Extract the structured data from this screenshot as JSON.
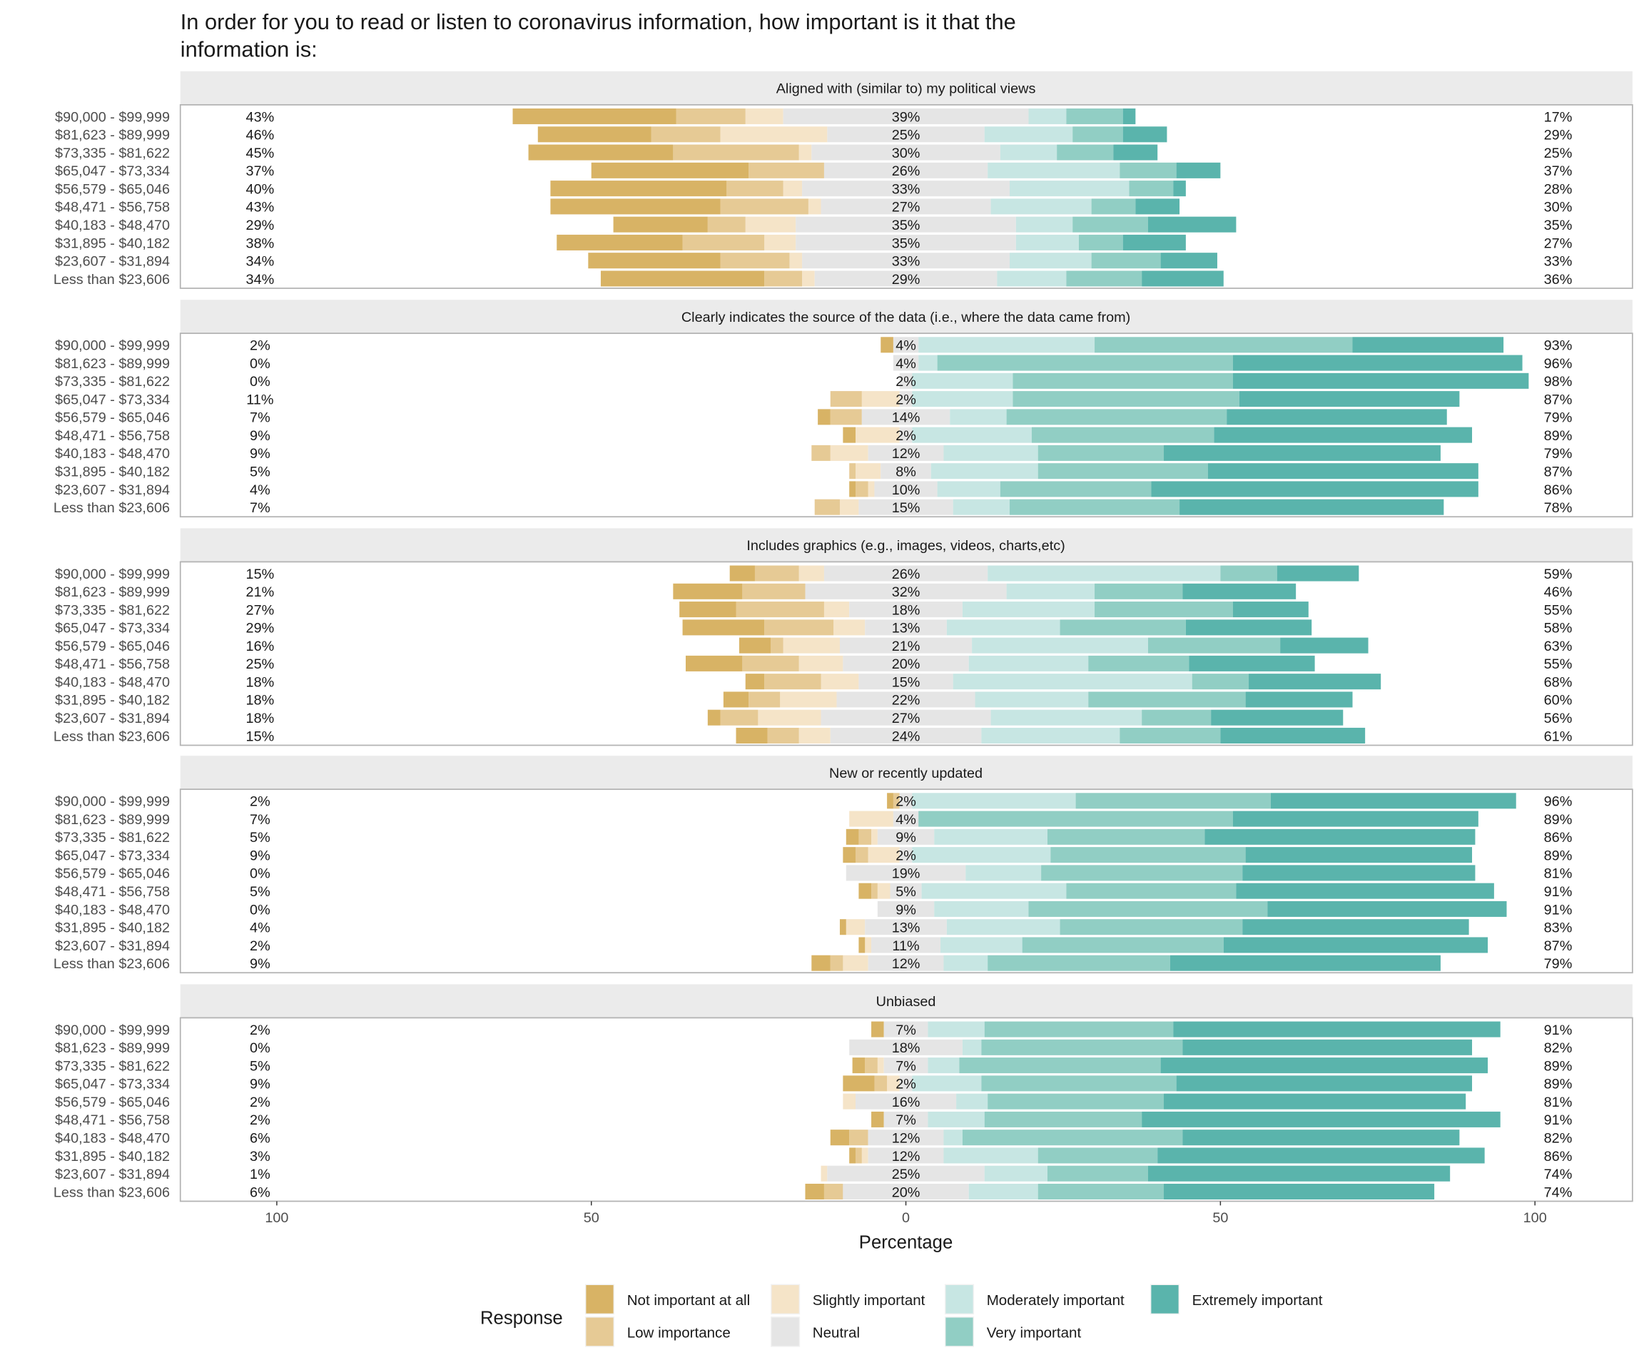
{
  "chart_data": {
    "type": "bar",
    "subtype": "diverging-stacked-likert",
    "title": "In order for you to read or listen to coronavirus information, how important is it that the information is:",
    "title_lines": [
      "In order for you to read or listen to coronavirus information, how important is it that the",
      "information is:"
    ],
    "xlabel": "Percentage",
    "xlim": [
      -115,
      115
    ],
    "xticks": [
      -100,
      -50,
      0,
      50,
      100
    ],
    "xtick_labels": [
      "100",
      "50",
      "0",
      "50",
      "100"
    ],
    "legend": {
      "title": "Response",
      "placement": "bottom",
      "entries": [
        "Not important at all",
        "Low importance",
        "Slightly important",
        "Neutral",
        "Moderately important",
        "Very important",
        "Extremely important"
      ]
    },
    "colors": [
      "#D8B365",
      "#E6CA95",
      "#F5E4C8",
      "#E5E5E5",
      "#C7E6E3",
      "#91CEC4",
      "#5AB4AC"
    ],
    "categories": [
      "$90,000 - $99,999",
      "$81,623 - $89,999",
      "$73,335 - $81,622",
      "$65,047 - $73,334",
      "$56,579 - $65,046",
      "$48,471 - $56,758",
      "$40,183 - $48,470",
      "$31,895 - $40,182",
      "$23,607 - $31,894",
      "Less than $23,606"
    ],
    "panels": [
      {
        "title": "Aligned with (similar to) my political views",
        "values": [
          [
            26,
            11,
            6,
            39,
            6,
            9,
            2
          ],
          [
            18,
            11,
            17,
            25,
            14,
            8,
            7
          ],
          [
            23,
            20,
            2,
            30,
            9,
            9,
            7
          ],
          [
            25,
            12,
            0,
            26,
            21,
            9,
            7
          ],
          [
            28,
            9,
            3,
            33,
            19,
            7,
            2
          ],
          [
            27,
            14,
            2,
            27,
            16,
            7,
            7
          ],
          [
            15,
            6,
            8,
            35,
            9,
            12,
            14
          ],
          [
            20,
            13,
            5,
            35,
            10,
            7,
            10
          ],
          [
            21,
            11,
            2,
            33,
            13,
            11,
            9
          ],
          [
            26,
            6,
            2,
            29,
            11,
            12,
            13
          ]
        ],
        "left_labels": [
          "43%",
          "46%",
          "45%",
          "37%",
          "40%",
          "43%",
          "29%",
          "38%",
          "34%",
          "34%"
        ],
        "center_labels": [
          "39%",
          "25%",
          "30%",
          "26%",
          "33%",
          "27%",
          "35%",
          "35%",
          "33%",
          "29%"
        ],
        "right_labels": [
          "17%",
          "29%",
          "25%",
          "37%",
          "28%",
          "30%",
          "35%",
          "27%",
          "33%",
          "36%"
        ]
      },
      {
        "title": "Clearly indicates the source of the data (i.e., where the data came from)",
        "values": [
          [
            2,
            0,
            0,
            4,
            28,
            41,
            24
          ],
          [
            0,
            0,
            0,
            4,
            3,
            47,
            46
          ],
          [
            0,
            0,
            0,
            2,
            16,
            35,
            47
          ],
          [
            0,
            5,
            6,
            2,
            16,
            36,
            35
          ],
          [
            2,
            5,
            0,
            14,
            9,
            35,
            35
          ],
          [
            2,
            0,
            7,
            2,
            19,
            29,
            41
          ],
          [
            0,
            3,
            6,
            12,
            15,
            20,
            44
          ],
          [
            0,
            1,
            4,
            8,
            17,
            27,
            43
          ],
          [
            1,
            2,
            1,
            10,
            10,
            24,
            52
          ],
          [
            0,
            4,
            3,
            15,
            9,
            27,
            42
          ]
        ],
        "left_labels": [
          "2%",
          "0%",
          "0%",
          "11%",
          "7%",
          "9%",
          "9%",
          "5%",
          "4%",
          "7%"
        ],
        "center_labels": [
          "4%",
          "4%",
          "2%",
          "2%",
          "14%",
          "2%",
          "12%",
          "8%",
          "10%",
          "15%"
        ],
        "right_labels": [
          "93%",
          "96%",
          "98%",
          "87%",
          "79%",
          "89%",
          "79%",
          "87%",
          "86%",
          "78%"
        ]
      },
      {
        "title": "Includes graphics (e.g., images, videos, charts,etc)",
        "values": [
          [
            4,
            7,
            4,
            26,
            37,
            9,
            13
          ],
          [
            11,
            10,
            0,
            32,
            14,
            14,
            18
          ],
          [
            9,
            14,
            4,
            18,
            21,
            22,
            12
          ],
          [
            13,
            11,
            5,
            13,
            18,
            20,
            20
          ],
          [
            5,
            2,
            9,
            21,
            28,
            21,
            14
          ],
          [
            9,
            9,
            7,
            20,
            19,
            16,
            20
          ],
          [
            3,
            9,
            6,
            15,
            38,
            9,
            21
          ],
          [
            4,
            5,
            9,
            22,
            18,
            25,
            17
          ],
          [
            2,
            6,
            10,
            27,
            24,
            11,
            21
          ],
          [
            5,
            5,
            5,
            24,
            22,
            16,
            23
          ]
        ],
        "left_labels": [
          "15%",
          "21%",
          "27%",
          "29%",
          "16%",
          "25%",
          "18%",
          "18%",
          "18%",
          "15%"
        ],
        "center_labels": [
          "26%",
          "32%",
          "18%",
          "13%",
          "21%",
          "20%",
          "15%",
          "22%",
          "27%",
          "24%"
        ],
        "right_labels": [
          "59%",
          "46%",
          "55%",
          "58%",
          "63%",
          "55%",
          "68%",
          "60%",
          "56%",
          "61%"
        ]
      },
      {
        "title": "New or recently updated",
        "values": [
          [
            1,
            1,
            0,
            2,
            26,
            31,
            39
          ],
          [
            0,
            0,
            7,
            4,
            0,
            50,
            39
          ],
          [
            2,
            2,
            1,
            9,
            18,
            25,
            43
          ],
          [
            2,
            2,
            5,
            2,
            22,
            31,
            36
          ],
          [
            0,
            0,
            0,
            19,
            12,
            32,
            37
          ],
          [
            2,
            1,
            2,
            5,
            23,
            27,
            41
          ],
          [
            0,
            0,
            0,
            9,
            15,
            38,
            38
          ],
          [
            1,
            0,
            3,
            13,
            18,
            29,
            36
          ],
          [
            1,
            0,
            1,
            11,
            13,
            32,
            42
          ],
          [
            3,
            2,
            4,
            12,
            7,
            29,
            43
          ]
        ],
        "left_labels": [
          "2%",
          "7%",
          "5%",
          "9%",
          "0%",
          "5%",
          "0%",
          "4%",
          "2%",
          "9%"
        ],
        "center_labels": [
          "2%",
          "4%",
          "9%",
          "2%",
          "19%",
          "5%",
          "9%",
          "13%",
          "11%",
          "12%"
        ],
        "right_labels": [
          "96%",
          "89%",
          "86%",
          "89%",
          "81%",
          "91%",
          "91%",
          "83%",
          "87%",
          "79%"
        ]
      },
      {
        "title": "Unbiased",
        "values": [
          [
            2,
            0,
            0,
            7,
            9,
            30,
            52
          ],
          [
            0,
            0,
            0,
            18,
            3,
            32,
            46
          ],
          [
            2,
            2,
            1,
            7,
            5,
            32,
            52
          ],
          [
            5,
            2,
            2,
            2,
            11,
            31,
            47
          ],
          [
            0,
            0,
            2,
            16,
            5,
            28,
            48
          ],
          [
            2,
            0,
            0,
            7,
            9,
            25,
            57
          ],
          [
            3,
            3,
            0,
            12,
            3,
            35,
            44
          ],
          [
            1,
            1,
            1,
            12,
            15,
            19,
            52
          ],
          [
            0,
            0,
            1,
            25,
            10,
            16,
            48
          ],
          [
            3,
            3,
            0,
            20,
            11,
            20,
            43
          ]
        ],
        "left_labels": [
          "2%",
          "0%",
          "5%",
          "9%",
          "2%",
          "2%",
          "6%",
          "3%",
          "1%",
          "6%"
        ],
        "center_labels": [
          "7%",
          "18%",
          "7%",
          "2%",
          "16%",
          "7%",
          "12%",
          "12%",
          "25%",
          "20%"
        ],
        "right_labels": [
          "91%",
          "82%",
          "89%",
          "89%",
          "81%",
          "91%",
          "82%",
          "86%",
          "74%",
          "74%"
        ]
      }
    ]
  }
}
